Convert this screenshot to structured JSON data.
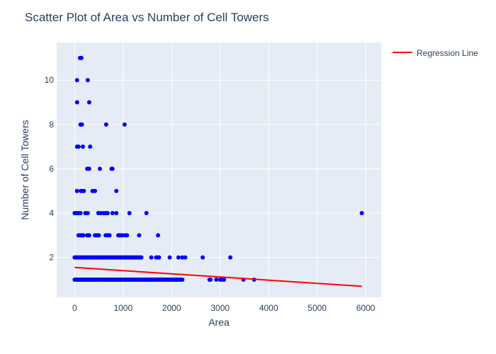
{
  "chart_data": {
    "type": "scatter",
    "title": "Scatter Plot of Area vs Number of Cell Towers",
    "xlabel": "Area",
    "ylabel": "Number of Cell Towers",
    "xlim": [
      -370,
      6320
    ],
    "ylim": [
      0.2,
      11.7
    ],
    "xticks": [
      0,
      1000,
      2000,
      3000,
      4000,
      5000,
      6000
    ],
    "yticks": [
      2,
      4,
      6,
      8,
      10
    ],
    "grid": true,
    "legend": {
      "position": "top-right",
      "entries": [
        "Regression Line"
      ]
    },
    "colors": {
      "points": "#0000ff",
      "regression": "#ff0000",
      "plot_bg": "#e5ecf6",
      "grid": "#ffffff",
      "text": "#2a3f5f"
    },
    "regression": {
      "x": [
        0,
        5920
      ],
      "y": [
        1.55,
        0.7
      ]
    },
    "series": [
      {
        "name": "y=1",
        "y": 1,
        "x_from": 0,
        "x_to": 2220,
        "x_step": 20,
        "extra_x": [
          2780,
          2800,
          2920,
          3000,
          3040,
          3080,
          3480,
          3700
        ]
      },
      {
        "name": "y=2",
        "y": 2,
        "x_from": 0,
        "x_to": 1380,
        "x_step": 25,
        "extra_x": [
          1580,
          1680,
          1720,
          1740,
          1960,
          2140,
          2220,
          2280,
          2640,
          3210
        ]
      },
      {
        "name": "y=3",
        "y": 3,
        "x": [
          80,
          120,
          140,
          160,
          180,
          260,
          280,
          300,
          420,
          460,
          500,
          640,
          680,
          720,
          900,
          920,
          940,
          980,
          1040,
          1080,
          1330,
          1720
        ]
      },
      {
        "name": "y=4",
        "y": 4,
        "x": [
          0,
          40,
          80,
          120,
          220,
          270,
          490,
          540,
          600,
          640,
          680,
          780,
          860,
          1130,
          1480,
          5920
        ]
      },
      {
        "name": "y=5",
        "y": 5,
        "x": [
          50,
          130,
          160,
          190,
          370,
          420,
          860
        ]
      },
      {
        "name": "y=6",
        "y": 6,
        "x": [
          260,
          300,
          520,
          760,
          780
        ]
      },
      {
        "name": "y=7",
        "y": 7,
        "x": [
          50,
          80,
          170,
          320
        ]
      },
      {
        "name": "y=8",
        "y": 8,
        "x": [
          120,
          150,
          650,
          1030
        ]
      },
      {
        "name": "y=9",
        "y": 9,
        "x": [
          50,
          300
        ]
      },
      {
        "name": "y=10",
        "y": 10,
        "x": [
          50,
          270
        ]
      },
      {
        "name": "y=11",
        "y": 11,
        "x": [
          110,
          140
        ]
      }
    ]
  }
}
